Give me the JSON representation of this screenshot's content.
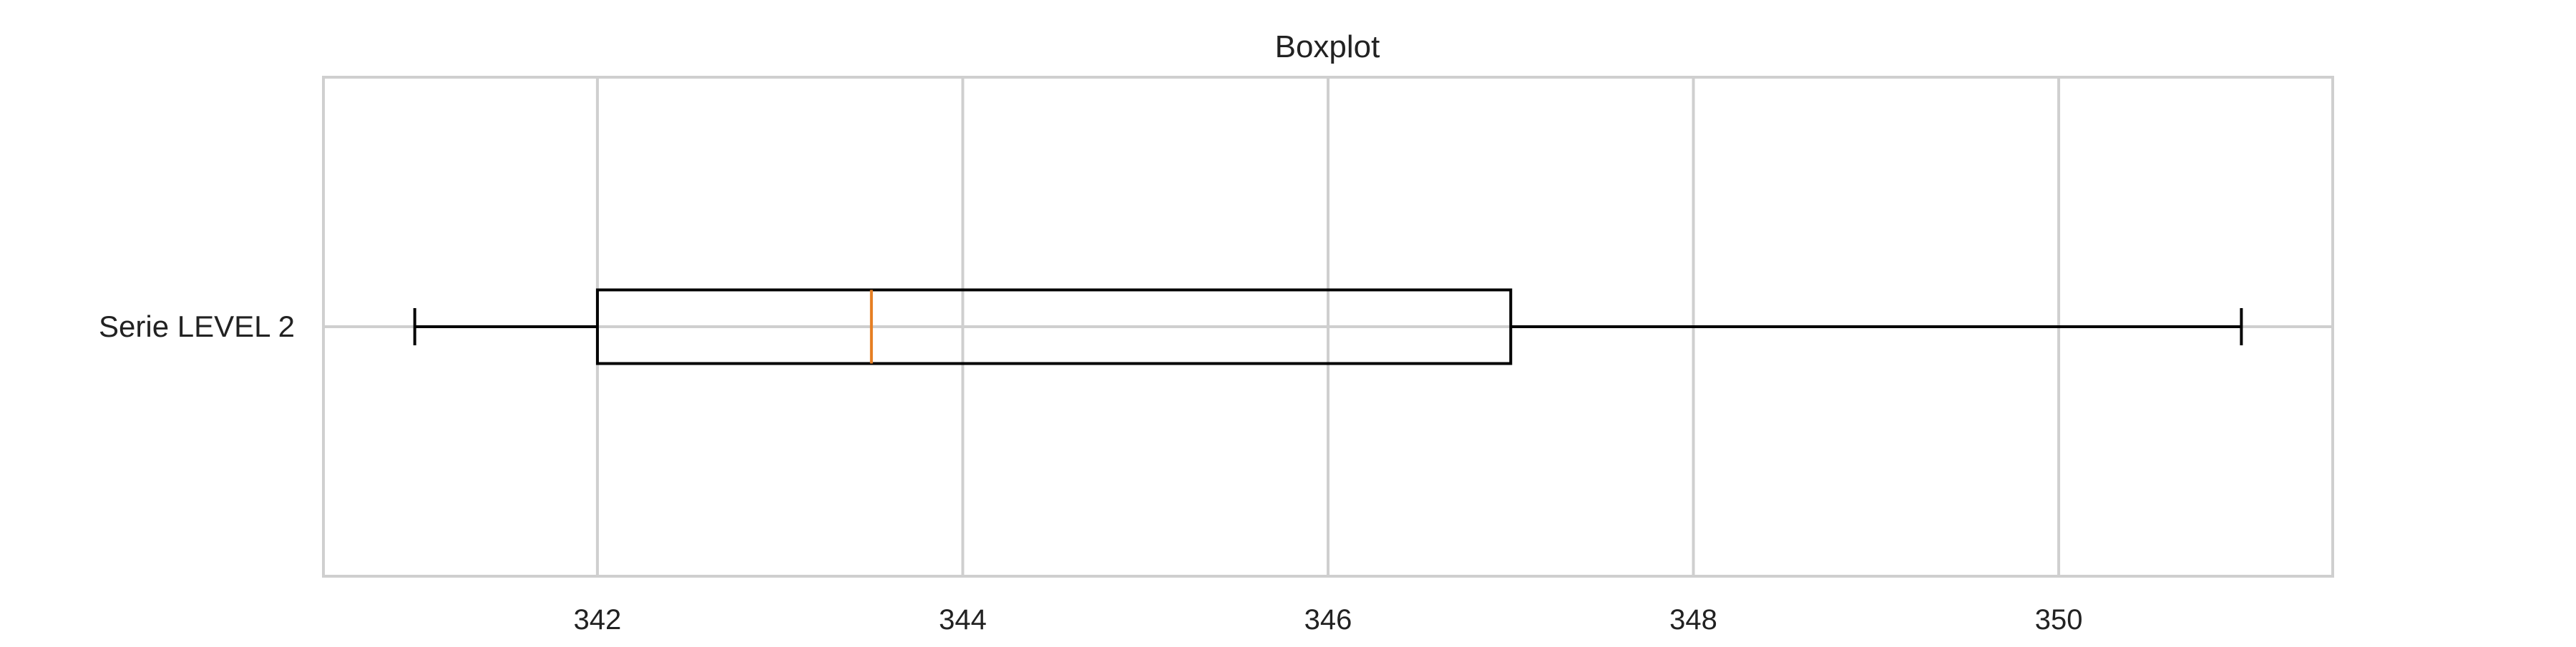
{
  "chart_data": {
    "type": "box",
    "title": "Boxplot",
    "orientation": "horizontal",
    "xlim": [
      340.5,
      351.5
    ],
    "x_ticks": [
      342,
      344,
      346,
      348,
      350
    ],
    "tick_labels": [
      "342",
      "344",
      "346",
      "348",
      "350"
    ],
    "grid": true,
    "series": [
      {
        "name": "Serie LEVEL 2",
        "whisker_low": 341,
        "q1": 342,
        "median": 343.5,
        "q3": 347,
        "whisker_high": 351
      }
    ],
    "colors": {
      "grid": "#cfcfcf",
      "frame": "#cfcfcf",
      "box": "#000000",
      "median": "#e67e22",
      "text": "#222222"
    }
  }
}
